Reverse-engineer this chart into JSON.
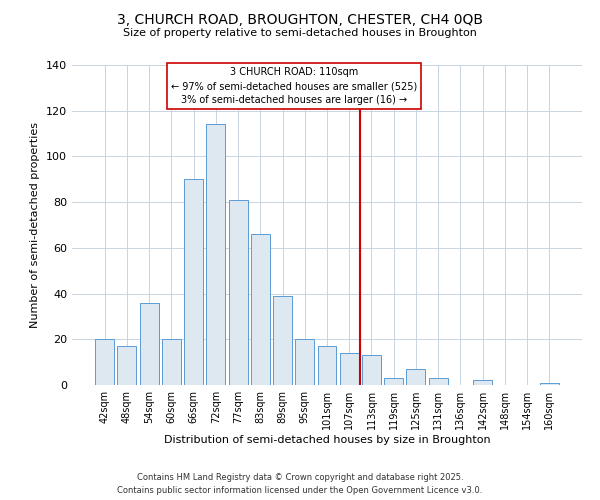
{
  "title": "3, CHURCH ROAD, BROUGHTON, CHESTER, CH4 0QB",
  "subtitle": "Size of property relative to semi-detached houses in Broughton",
  "xlabel": "Distribution of semi-detached houses by size in Broughton",
  "ylabel": "Number of semi-detached properties",
  "bar_color": "#dde8f0",
  "bar_edge_color": "#5b9bd5",
  "background_color": "#ffffff",
  "grid_color": "#c8d4e0",
  "categories": [
    "42sqm",
    "48sqm",
    "54sqm",
    "60sqm",
    "66sqm",
    "72sqm",
    "77sqm",
    "83sqm",
    "89sqm",
    "95sqm",
    "101sqm",
    "107sqm",
    "113sqm",
    "119sqm",
    "125sqm",
    "131sqm",
    "136sqm",
    "142sqm",
    "148sqm",
    "154sqm",
    "160sqm"
  ],
  "values": [
    20,
    17,
    36,
    20,
    90,
    114,
    81,
    66,
    39,
    20,
    17,
    14,
    13,
    3,
    7,
    3,
    0,
    2,
    0,
    0,
    1
  ],
  "ylim": [
    0,
    140
  ],
  "yticks": [
    0,
    20,
    40,
    60,
    80,
    100,
    120,
    140
  ],
  "vline_color": "#cc0000",
  "vline_x_index": 11.5,
  "annotation_title": "3 CHURCH ROAD: 110sqm",
  "annotation_line1": "← 97% of semi-detached houses are smaller (525)",
  "annotation_line2": "3% of semi-detached houses are larger (16) →",
  "annotation_box_color": "#ffffff",
  "annotation_box_edge": "#cc0000",
  "footer_line1": "Contains HM Land Registry data © Crown copyright and database right 2025.",
  "footer_line2": "Contains public sector information licensed under the Open Government Licence v3.0.",
  "title_fontsize": 10,
  "subtitle_fontsize": 8,
  "ylabel_fontsize": 8,
  "xlabel_fontsize": 8
}
